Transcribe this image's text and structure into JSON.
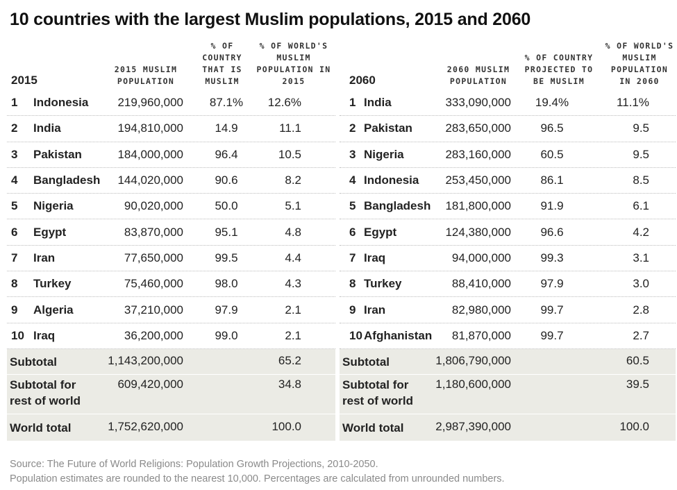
{
  "title": "10 countries with the largest Muslim populations, 2015 and 2060",
  "left": {
    "year_label": "2015",
    "headers": {
      "population": "2015 MUSLIM POPULATION",
      "pct_country": "% OF COUNTRY THAT IS MUSLIM",
      "pct_world": "% OF WORLD'S MUSLIM POPULATION IN 2015"
    },
    "rows": [
      {
        "rank": "1",
        "country": "Indonesia",
        "population": "219,960,000",
        "pct_country": "87.1%",
        "pct_world": "12.6%"
      },
      {
        "rank": "2",
        "country": "India",
        "population": "194,810,000",
        "pct_country": "14.9",
        "pct_world": "11.1"
      },
      {
        "rank": "3",
        "country": "Pakistan",
        "population": "184,000,000",
        "pct_country": "96.4",
        "pct_world": "10.5"
      },
      {
        "rank": "4",
        "country": "Bangladesh",
        "population": "144,020,000",
        "pct_country": "90.6",
        "pct_world": "8.2"
      },
      {
        "rank": "5",
        "country": "Nigeria",
        "population": "90,020,000",
        "pct_country": "50.0",
        "pct_world": "5.1"
      },
      {
        "rank": "6",
        "country": "Egypt",
        "population": "83,870,000",
        "pct_country": "95.1",
        "pct_world": "4.8"
      },
      {
        "rank": "7",
        "country": "Iran",
        "population": "77,650,000",
        "pct_country": "99.5",
        "pct_world": "4.4"
      },
      {
        "rank": "8",
        "country": "Turkey",
        "population": "75,460,000",
        "pct_country": "98.0",
        "pct_world": "4.3"
      },
      {
        "rank": "9",
        "country": "Algeria",
        "population": "37,210,000",
        "pct_country": "97.9",
        "pct_world": "2.1"
      },
      {
        "rank": "10",
        "country": "Iraq",
        "population": "36,200,000",
        "pct_country": "99.0",
        "pct_world": "2.1"
      }
    ],
    "subtotal": {
      "label": "Subtotal",
      "population": "1,143,200,000",
      "pct_world": "65.2"
    },
    "rest": {
      "label": "Subtotal for rest of world",
      "population": "609,420,000",
      "pct_world": "34.8"
    },
    "world": {
      "label": "World total",
      "population": "1,752,620,000",
      "pct_world": "100.0"
    }
  },
  "right": {
    "year_label": "2060",
    "headers": {
      "population": "2060 MUSLIM POPULATION",
      "pct_country": "% OF COUNTRY PROJECTED TO BE MUSLIM",
      "pct_world": "% OF WORLD'S MUSLIM POPULATION IN 2060"
    },
    "rows": [
      {
        "rank": "1",
        "country": "India",
        "population": "333,090,000",
        "pct_country": "19.4%",
        "pct_world": "11.1%"
      },
      {
        "rank": "2",
        "country": "Pakistan",
        "population": "283,650,000",
        "pct_country": "96.5",
        "pct_world": "9.5"
      },
      {
        "rank": "3",
        "country": "Nigeria",
        "population": "283,160,000",
        "pct_country": "60.5",
        "pct_world": "9.5"
      },
      {
        "rank": "4",
        "country": "Indonesia",
        "population": "253,450,000",
        "pct_country": "86.1",
        "pct_world": "8.5"
      },
      {
        "rank": "5",
        "country": "Bangladesh",
        "population": "181,800,000",
        "pct_country": "91.9",
        "pct_world": "6.1"
      },
      {
        "rank": "6",
        "country": "Egypt",
        "population": "124,380,000",
        "pct_country": "96.6",
        "pct_world": "4.2"
      },
      {
        "rank": "7",
        "country": "Iraq",
        "population": "94,000,000",
        "pct_country": "99.3",
        "pct_world": "3.1"
      },
      {
        "rank": "8",
        "country": "Turkey",
        "population": "88,410,000",
        "pct_country": "97.9",
        "pct_world": "3.0"
      },
      {
        "rank": "9",
        "country": "Iran",
        "population": "82,980,000",
        "pct_country": "99.7",
        "pct_world": "2.8"
      },
      {
        "rank": "10",
        "country": "Afghanistan",
        "population": "81,870,000",
        "pct_country": "99.7",
        "pct_world": "2.7"
      }
    ],
    "subtotal": {
      "label": "Subtotal",
      "population": "1,806,790,000",
      "pct_world": "60.5"
    },
    "rest": {
      "label": "Subtotal for rest of world",
      "population": "1,180,600,000",
      "pct_world": "39.5"
    },
    "world": {
      "label": "World total",
      "population": "2,987,390,000",
      "pct_world": "100.0"
    }
  },
  "footer": {
    "source": "Source: The Future of World Religions: Population Growth Projections, 2010-2050.",
    "note": "Population estimates are rounded to the nearest 10,000. Percentages are calculated from unrounded numbers."
  },
  "colors": {
    "summary_bg": "#ebebe5",
    "footer_text": "#8a8a8a"
  }
}
